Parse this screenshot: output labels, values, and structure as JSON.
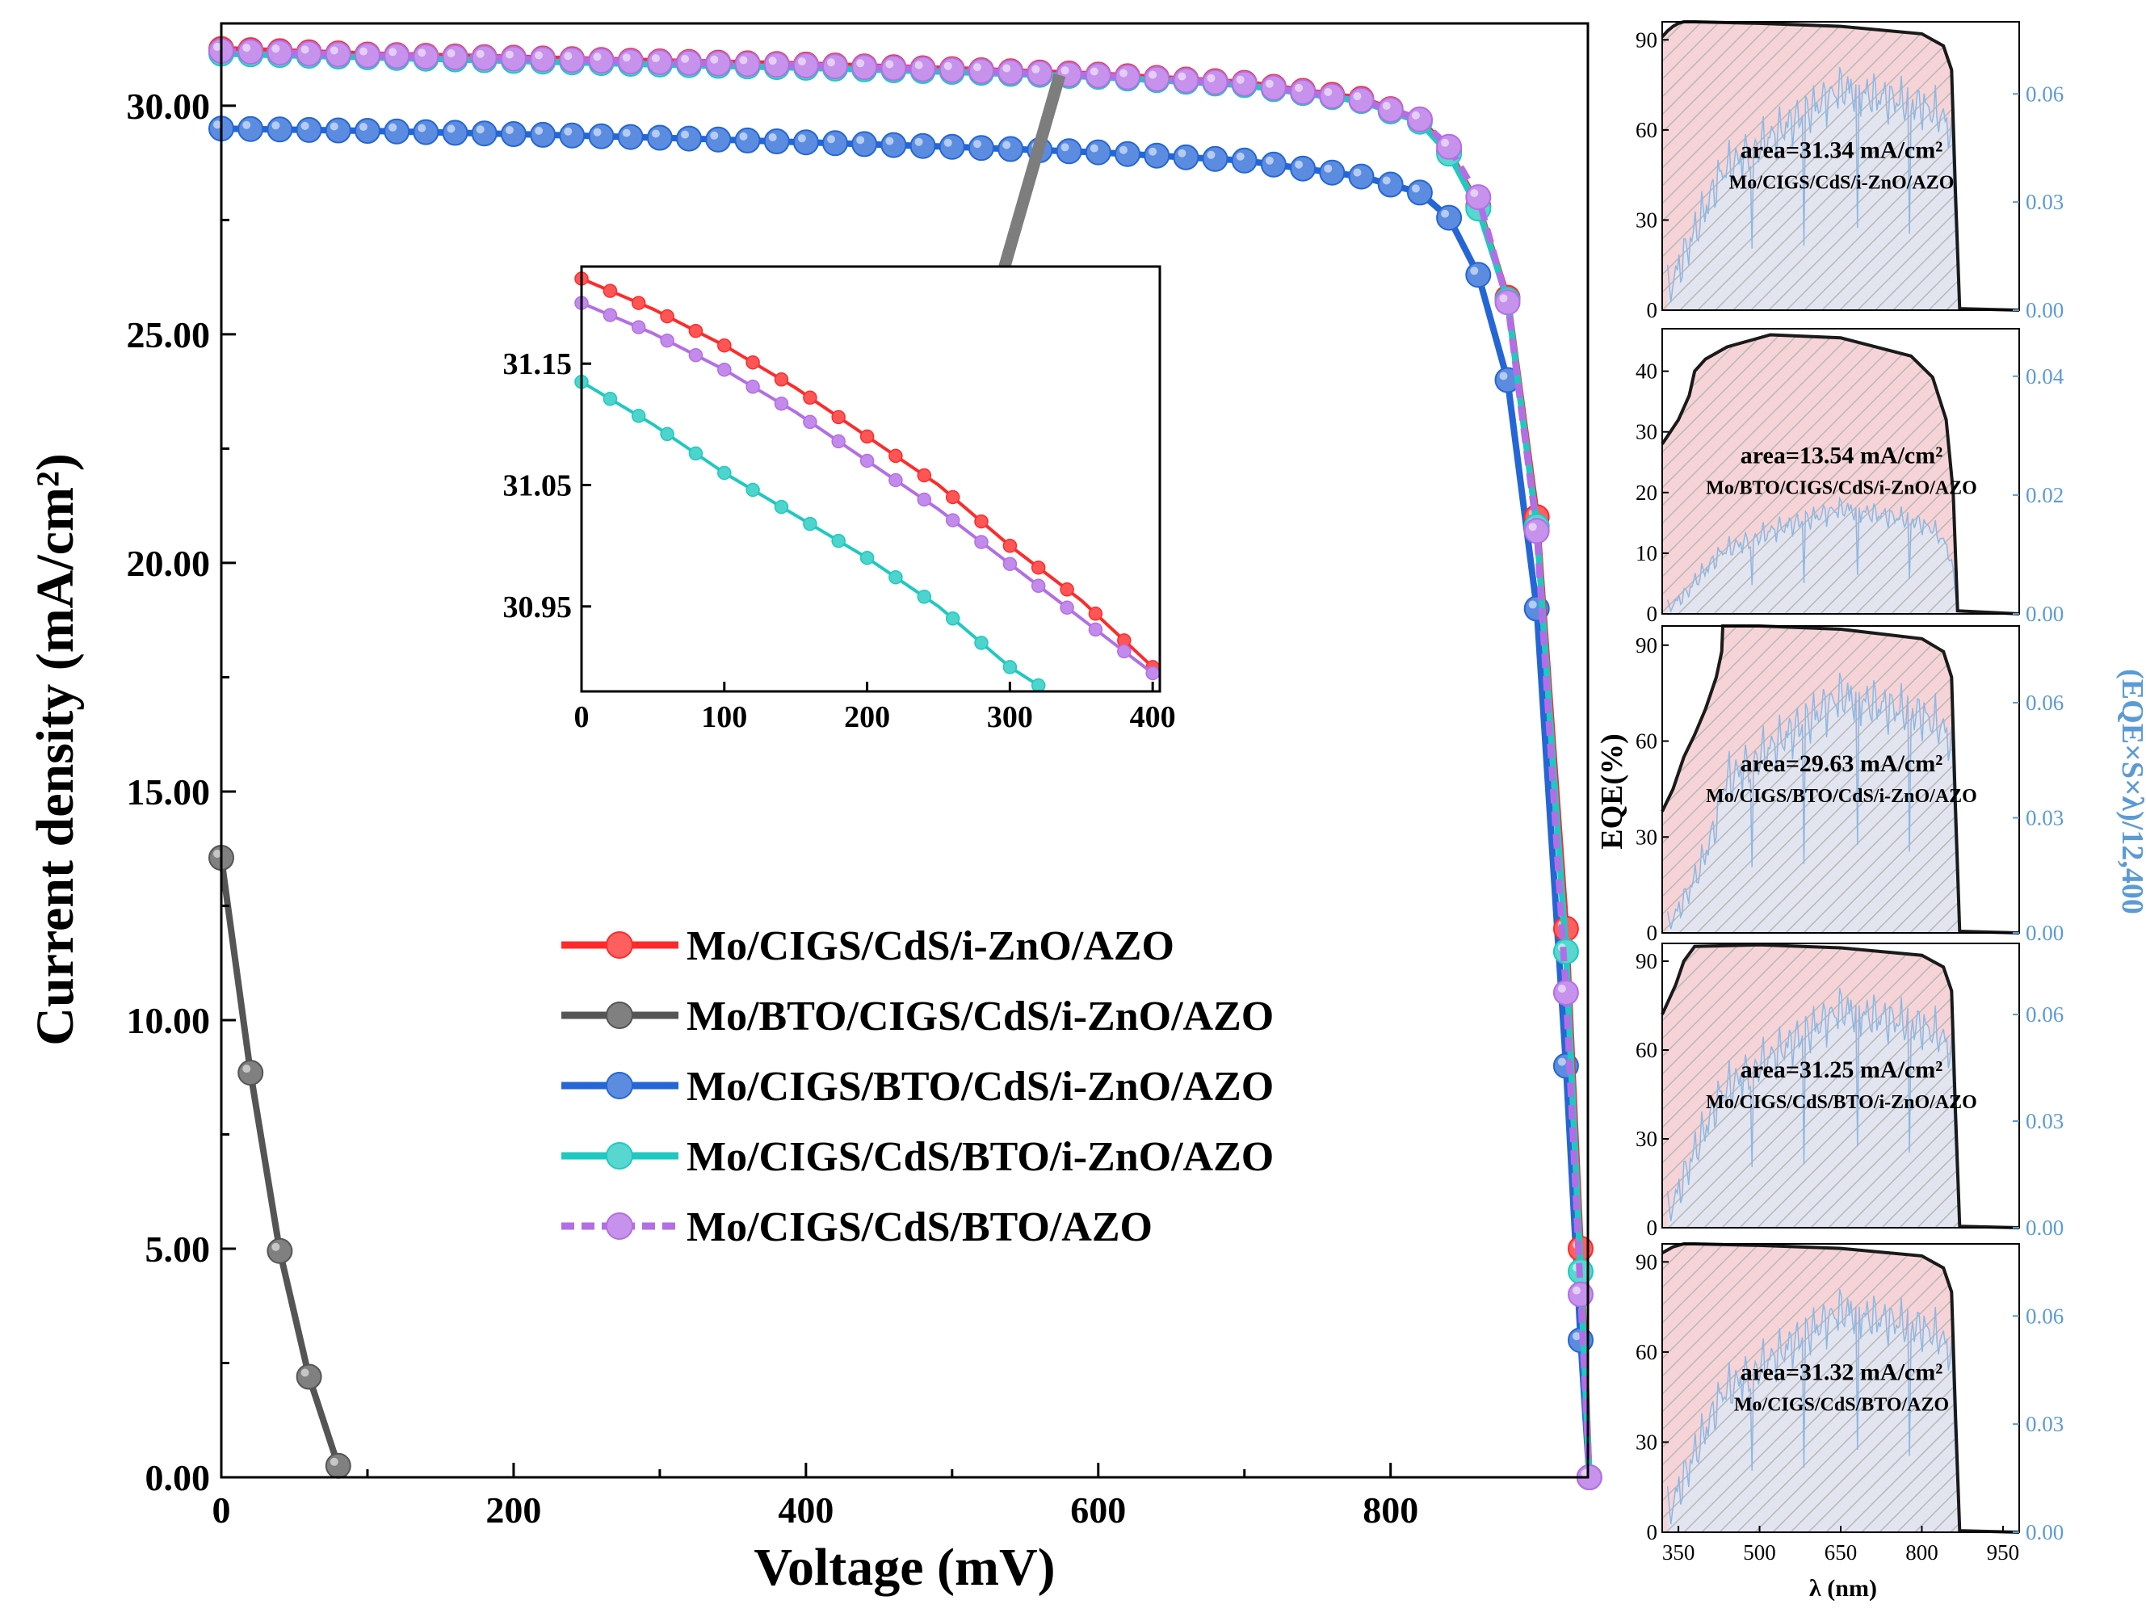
{
  "chart_data": [
    {
      "type": "line",
      "name": "J-V curves",
      "xlabel": "Voltage (mV)",
      "ylabel": "Current density (mA/cm²)",
      "xlim": [
        0,
        935
      ],
      "ylim": [
        0,
        31.8
      ],
      "xticks": [
        "0",
        "200",
        "400",
        "600",
        "800"
      ],
      "xtick_values": [
        0,
        200,
        400,
        600,
        800
      ],
      "yticks": [
        "0.00",
        "5.00",
        "10.00",
        "15.00",
        "20.00",
        "25.00",
        "30.00"
      ],
      "ytick_values": [
        0,
        5,
        10,
        15,
        20,
        25,
        30
      ],
      "legend_position": "center",
      "series": [
        {
          "name": "Mo/CIGS/CdS/i-ZnO/AZO",
          "color": "#ff2a2a",
          "style": "solid",
          "x": [
            0,
            100,
            200,
            300,
            400,
            500,
            600,
            700,
            780,
            820,
            840,
            860,
            880,
            900,
            920,
            930,
            936
          ],
          "y": [
            31.24,
            31.12,
            31.05,
            30.97,
            30.9,
            30.8,
            30.68,
            30.5,
            30.15,
            29.7,
            29.0,
            27.8,
            25.8,
            21.0,
            12.0,
            5.0,
            0
          ]
        },
        {
          "name": "Mo/BTO/CIGS/CdS/i-ZnO/AZO",
          "color": "#555555",
          "style": "solid",
          "x": [
            0,
            20,
            40,
            60,
            80
          ],
          "y": [
            13.55,
            8.85,
            4.95,
            2.2,
            0.25
          ]
        },
        {
          "name": "Mo/CIGS/BTO/CdS/i-ZnO/AZO",
          "color": "#2466d6",
          "style": "solid",
          "x": [
            0,
            100,
            200,
            300,
            400,
            500,
            600,
            700,
            780,
            820,
            840,
            860,
            880,
            900,
            920,
            930,
            936
          ],
          "y": [
            29.5,
            29.45,
            29.38,
            29.3,
            29.2,
            29.1,
            28.98,
            28.8,
            28.45,
            28.1,
            27.55,
            26.3,
            24.0,
            19.0,
            9.0,
            3.0,
            0
          ]
        },
        {
          "name": "Mo/CIGS/CdS/BTO/i-ZnO/AZO",
          "color": "#1fc9c0",
          "style": "solid",
          "x": [
            0,
            100,
            200,
            300,
            400,
            500,
            600,
            700,
            780,
            820,
            840,
            860,
            880,
            900,
            920,
            930,
            936
          ],
          "y": [
            31.14,
            31.06,
            30.98,
            30.9,
            30.83,
            30.74,
            30.63,
            30.45,
            30.1,
            29.65,
            28.95,
            27.75,
            25.75,
            20.8,
            11.5,
            4.5,
            0
          ]
        },
        {
          "name": "Mo/CIGS/CdS/BTO/AZO",
          "color": "#b36ee6",
          "style": "dashed",
          "x": [
            0,
            100,
            200,
            300,
            400,
            500,
            600,
            700,
            780,
            820,
            840,
            860,
            880,
            900,
            920,
            930,
            936
          ],
          "y": [
            31.2,
            31.1,
            31.03,
            30.95,
            30.88,
            30.78,
            30.66,
            30.48,
            30.12,
            29.7,
            29.1,
            28.0,
            25.7,
            20.7,
            10.6,
            4.0,
            0
          ]
        }
      ]
    },
    {
      "type": "line",
      "name": "J-V inset (zoom)",
      "xlim": [
        0,
        405
      ],
      "ylim": [
        30.88,
        31.23
      ],
      "xticks": [
        "0",
        "100",
        "200",
        "300",
        "400"
      ],
      "xtick_values": [
        0,
        100,
        200,
        300,
        400
      ],
      "yticks": [
        "30.95",
        "31.05",
        "31.15"
      ],
      "ytick_values": [
        30.95,
        31.05,
        31.15
      ],
      "series": [
        {
          "name": "Mo/CIGS/CdS/i-ZnO/AZO",
          "x": [
            0,
            50,
            100,
            150,
            200,
            250,
            300,
            350,
            400
          ],
          "y": [
            31.22,
            31.195,
            31.165,
            31.13,
            31.09,
            31.05,
            31.0,
            30.955,
            30.9
          ]
        },
        {
          "name": "Mo/CIGS/CdS/BTO/AZO",
          "x": [
            0,
            50,
            100,
            150,
            200,
            250,
            300,
            350,
            400
          ],
          "y": [
            31.2,
            31.175,
            31.145,
            31.11,
            31.07,
            31.03,
            30.985,
            30.94,
            30.895
          ]
        },
        {
          "name": "Mo/CIGS/CdS/BTO/i-ZnO/AZO",
          "x": [
            0,
            50,
            100,
            150,
            200,
            250,
            300,
            320
          ],
          "y": [
            31.135,
            31.1,
            31.06,
            31.025,
            30.99,
            30.95,
            30.9,
            30.885
          ]
        }
      ]
    },
    {
      "type": "area",
      "name": "EQE panels",
      "xlabel": "λ (nm)",
      "ylabel_left": "EQE(%)",
      "ylabel_right": "(EQE×S×λ)/12,400",
      "xlim": [
        320,
        980
      ],
      "xticks": [
        "350",
        "500",
        "650",
        "800",
        "950"
      ],
      "xtick_values": [
        350,
        500,
        650,
        800,
        950
      ],
      "panels": [
        {
          "area_label": "area=31.34 mA/cm²",
          "device": "Mo/CIGS/CdS/i-ZnO/AZO",
          "ylim_left": [
            0,
            96
          ],
          "yticks_left": [
            "0",
            "30",
            "60",
            "90"
          ],
          "ytick_values_left": [
            0,
            30,
            60,
            90
          ],
          "ylim_right": [
            0,
            0.08
          ],
          "yticks_right": [
            "0.00",
            "0.03",
            "0.06"
          ],
          "ytick_values_right": [
            0,
            0.03,
            0.06
          ],
          "eqe_x": [
            320,
            330,
            340,
            350,
            360,
            380,
            500,
            650,
            800,
            840,
            855,
            862,
            870,
            980
          ],
          "eqe_y": [
            91,
            93,
            94.5,
            95.5,
            96,
            96,
            95.5,
            94.5,
            92,
            88,
            80,
            40,
            0.5,
            0
          ]
        },
        {
          "area_label": "area=13.54 mA/cm²",
          "device": "Mo/BTO/CIGS/CdS/i-ZnO/AZO",
          "ylim_left": [
            0,
            47
          ],
          "yticks_left": [
            "0",
            "10",
            "20",
            "30",
            "40"
          ],
          "ytick_values_left": [
            0,
            10,
            20,
            30,
            40
          ],
          "ylim_right": [
            0,
            0.048
          ],
          "yticks_right": [
            "0.00",
            "0.02",
            "0.04"
          ],
          "ytick_values_right": [
            0,
            0.02,
            0.04
          ],
          "eqe_x": [
            320,
            350,
            370,
            380,
            400,
            440,
            480,
            520,
            650,
            780,
            820,
            845,
            858,
            866,
            980
          ],
          "eqe_y": [
            28,
            32,
            36,
            40,
            42,
            44,
            45,
            46,
            45.5,
            42.5,
            39,
            32,
            20,
            0.5,
            0
          ]
        },
        {
          "area_label": "area=29.63 mA/cm²",
          "device": "Mo/CIGS/BTO/CdS/i-ZnO/AZO",
          "ylim_left": [
            0,
            96
          ],
          "yticks_left": [
            "0",
            "30",
            "60",
            "90"
          ],
          "ytick_values_left": [
            0,
            30,
            60,
            90
          ],
          "ylim_right": [
            0,
            0.08
          ],
          "yticks_right": [
            "0.00",
            "0.03",
            "0.06"
          ],
          "ytick_values_right": [
            0,
            0.03,
            0.06
          ],
          "eqe_x": [
            320,
            340,
            360,
            380,
            400,
            420,
            430,
            432,
            500,
            650,
            800,
            840,
            855,
            862,
            870,
            980
          ],
          "eqe_y": [
            38,
            45,
            55,
            62,
            70,
            80,
            88,
            96,
            96,
            95,
            92,
            88,
            80,
            40,
            0.5,
            0
          ]
        },
        {
          "area_label": "area=31.25 mA/cm²",
          "device": "Mo/CIGS/CdS/BTO/i-ZnO/AZO",
          "ylim_left": [
            0,
            96
          ],
          "yticks_left": [
            "0",
            "30",
            "60",
            "90"
          ],
          "ytick_values_left": [
            0,
            30,
            60,
            90
          ],
          "ylim_right": [
            0,
            0.08
          ],
          "yticks_right": [
            "0.00",
            "0.03",
            "0.06"
          ],
          "ytick_values_right": [
            0,
            0.03,
            0.06
          ],
          "eqe_x": [
            320,
            330,
            345,
            360,
            380,
            500,
            650,
            800,
            840,
            855,
            862,
            870,
            980
          ],
          "eqe_y": [
            72,
            76,
            82,
            90,
            95,
            95.5,
            94.5,
            92,
            88,
            80,
            40,
            0.5,
            0
          ]
        },
        {
          "area_label": "area=31.32 mA/cm²",
          "device": "Mo/CIGS/CdS/BTO/AZO",
          "ylim_left": [
            0,
            96
          ],
          "yticks_left": [
            "0",
            "30",
            "60",
            "90"
          ],
          "ytick_values_left": [
            0,
            30,
            60,
            90
          ],
          "ylim_right": [
            0,
            0.08
          ],
          "yticks_right": [
            "0.00",
            "0.03",
            "0.06"
          ],
          "ytick_values_right": [
            0,
            0.03,
            0.06
          ],
          "eqe_x": [
            320,
            340,
            360,
            380,
            500,
            650,
            800,
            840,
            855,
            862,
            870,
            980
          ],
          "eqe_y": [
            93,
            95,
            96,
            96,
            95.5,
            94.5,
            92,
            88,
            80,
            40,
            0.5,
            0
          ]
        }
      ]
    }
  ]
}
